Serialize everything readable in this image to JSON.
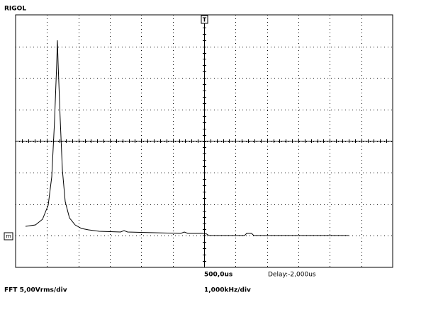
{
  "header": {
    "brand": "RIGOL"
  },
  "status": {
    "timebase": "500,0us",
    "delay": "Delay:-2,000us",
    "source_scale": "FFT 5,00Vrms/div",
    "freq_scale": "1,000kHz/div"
  },
  "markers": {
    "trigger": "T",
    "math": "m"
  }
}
